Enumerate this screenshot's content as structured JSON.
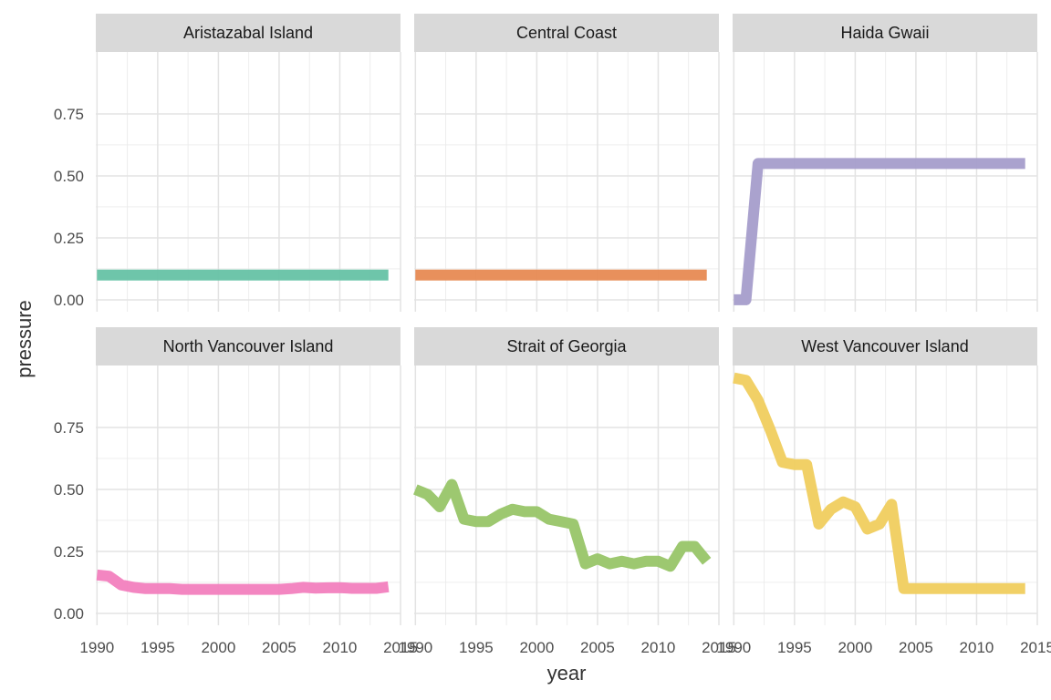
{
  "chart_data": {
    "type": "line",
    "title": "",
    "xlabel": "year",
    "ylabel": "pressure",
    "xlim": [
      1989.9,
      2015.0
    ],
    "ylim": [
      -0.048,
      1.0
    ],
    "x_ticks": [
      1990,
      1995,
      2000,
      2005,
      2010,
      2015
    ],
    "x_tick_labels": [
      "1990",
      "1995",
      "2000",
      "2005",
      "2010",
      "2015"
    ],
    "y_ticks": [
      0,
      0.25,
      0.5,
      0.75
    ],
    "y_tick_labels": [
      "0.00",
      "0.25",
      "0.50",
      "0.75"
    ],
    "grid": true,
    "legend": "none",
    "panels": [
      {
        "name": "Aristazabal Island",
        "color": "#66c2a5",
        "x": [
          1990,
          2014
        ],
        "y": [
          0.1,
          0.1
        ]
      },
      {
        "name": "Central Coast",
        "color": "#e78a53",
        "x": [
          1990,
          2014
        ],
        "y": [
          0.1,
          0.1
        ]
      },
      {
        "name": "Haida Gwaii",
        "color": "#a59dcb",
        "x": [
          1990,
          1991,
          1992,
          2014
        ],
        "y": [
          0.0,
          0.0,
          0.55,
          0.55
        ]
      },
      {
        "name": "North Vancouver Island",
        "color": "#f27fbe",
        "x": [
          1990,
          1991,
          1992,
          1993,
          1994,
          1995,
          1996,
          1997,
          1998,
          1999,
          2000,
          2001,
          2002,
          2003,
          2004,
          2005,
          2006,
          2007,
          2008,
          2009,
          2010,
          2011,
          2012,
          2013,
          2014
        ],
        "y": [
          0.155,
          0.15,
          0.115,
          0.105,
          0.1,
          0.1,
          0.1,
          0.097,
          0.097,
          0.097,
          0.097,
          0.097,
          0.097,
          0.097,
          0.097,
          0.097,
          0.1,
          0.105,
          0.102,
          0.103,
          0.104,
          0.101,
          0.101,
          0.101,
          0.107
        ]
      },
      {
        "name": "Strait of Georgia",
        "color": "#98c568",
        "x": [
          1990,
          1991,
          1992,
          1993,
          1994,
          1995,
          1996,
          1997,
          1998,
          1999,
          2000,
          2001,
          2002,
          2003,
          2004,
          2005,
          2006,
          2007,
          2008,
          2009,
          2010,
          2011,
          2012,
          2013,
          2014
        ],
        "y": [
          0.5,
          0.48,
          0.43,
          0.52,
          0.38,
          0.37,
          0.37,
          0.4,
          0.42,
          0.41,
          0.41,
          0.38,
          0.37,
          0.36,
          0.2,
          0.22,
          0.2,
          0.21,
          0.2,
          0.21,
          0.21,
          0.19,
          0.27,
          0.27,
          0.21
        ]
      },
      {
        "name": "West Vancouver Island",
        "color": "#f0cd5e",
        "x": [
          1990,
          1991,
          1992,
          1993,
          1994,
          1995,
          1996,
          1997,
          1998,
          1999,
          2000,
          2001,
          2002,
          2003,
          2004,
          2005,
          2006,
          2007,
          2008,
          2009,
          2010,
          2011,
          2012,
          2013,
          2014
        ],
        "y": [
          0.95,
          0.94,
          0.86,
          0.74,
          0.61,
          0.6,
          0.6,
          0.36,
          0.42,
          0.45,
          0.43,
          0.34,
          0.36,
          0.44,
          0.1,
          0.1,
          0.1,
          0.1,
          0.1,
          0.1,
          0.1,
          0.1,
          0.1,
          0.1,
          0.1
        ]
      }
    ]
  }
}
